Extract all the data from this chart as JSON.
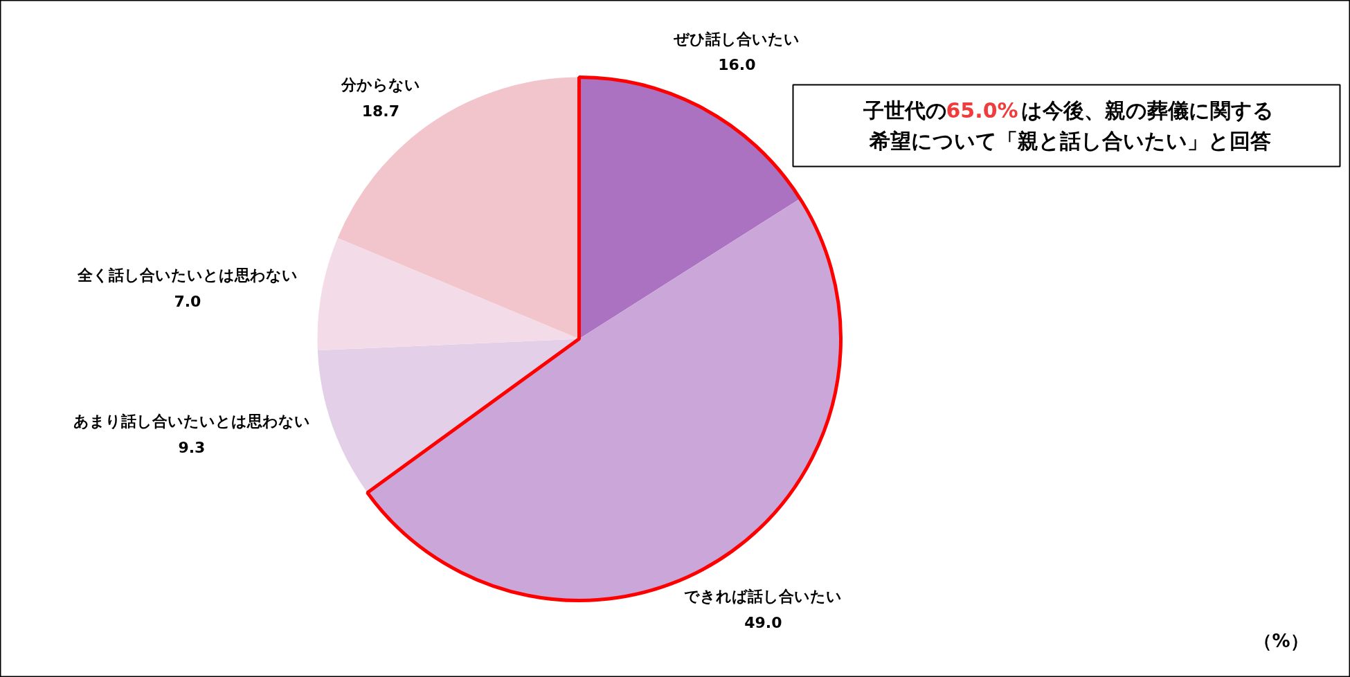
{
  "chart_data": {
    "type": "pie",
    "categories": [
      "ぜひ話し合いたい",
      "できれば話し合いたい",
      "あまり話し合いたいとは思わない",
      "全く話し合いたいとは思わない",
      "分からない"
    ],
    "values": [
      16.0,
      49.0,
      9.3,
      7.0,
      18.7
    ],
    "colors": [
      "#ab72c2",
      "#cba6d8",
      "#e3d0e8",
      "#f3dce8",
      "#f2c4cc"
    ],
    "value_labels": [
      "16.0",
      "49.0",
      "9.3",
      "7.0",
      "18.7"
    ],
    "annotations": [
      "子世代の65.0%は今後、親の葬儀に関する",
      "希望について「親と話し合いたい」と回答",
      "（%）"
    ]
  }
}
